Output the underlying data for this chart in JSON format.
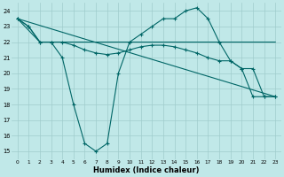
{
  "background_color": "#c0e8e8",
  "grid_color": "#a0cccc",
  "line_color": "#006666",
  "xlabel": "Humidex (Indice chaleur)",
  "xlim": [
    -0.5,
    23.5
  ],
  "ylim": [
    14.5,
    24.5
  ],
  "yticks": [
    15,
    16,
    17,
    18,
    19,
    20,
    21,
    22,
    23,
    24
  ],
  "xticks": [
    0,
    1,
    2,
    3,
    4,
    5,
    6,
    7,
    8,
    9,
    10,
    11,
    12,
    13,
    14,
    15,
    16,
    17,
    18,
    19,
    20,
    21,
    22,
    23
  ],
  "curve1_x": [
    0,
    1,
    2,
    3,
    4,
    5,
    6,
    7,
    8,
    9,
    10,
    11,
    12,
    13,
    14,
    15,
    16,
    17,
    18,
    19,
    20,
    21,
    22,
    23
  ],
  "curve1_y": [
    23.5,
    23.0,
    22.0,
    22.0,
    21.0,
    18.0,
    15.5,
    15.0,
    15.5,
    20.0,
    22.0,
    22.5,
    23.0,
    23.5,
    23.5,
    24.0,
    24.2,
    23.5,
    22.0,
    20.8,
    20.3,
    18.5,
    18.5,
    18.5
  ],
  "curve2_x": [
    0,
    2,
    3,
    4,
    5,
    6,
    7,
    8,
    9,
    10,
    11,
    12,
    13,
    14,
    15,
    16,
    17,
    18,
    19,
    20,
    21,
    22,
    23
  ],
  "curve2_y": [
    23.5,
    22.0,
    22.0,
    22.0,
    22.0,
    22.0,
    22.0,
    22.0,
    22.0,
    22.0,
    22.0,
    22.0,
    22.0,
    22.0,
    22.0,
    22.0,
    22.0,
    22.0,
    22.0,
    22.0,
    22.0,
    22.0,
    22.0
  ],
  "curve3_x": [
    0,
    23
  ],
  "curve3_y": [
    23.5,
    18.5
  ],
  "curve4_x": [
    0,
    1,
    2,
    3,
    4,
    5,
    6,
    7,
    8,
    9,
    10,
    11,
    12,
    13,
    14,
    15,
    16,
    17,
    18,
    19,
    20,
    21,
    22,
    23
  ],
  "curve4_y": [
    23.5,
    23.0,
    22.0,
    22.0,
    22.0,
    21.8,
    21.5,
    21.3,
    21.2,
    21.3,
    21.5,
    21.7,
    21.8,
    21.8,
    21.7,
    21.5,
    21.3,
    21.0,
    20.8,
    20.8,
    20.3,
    20.3,
    18.5,
    18.5
  ]
}
